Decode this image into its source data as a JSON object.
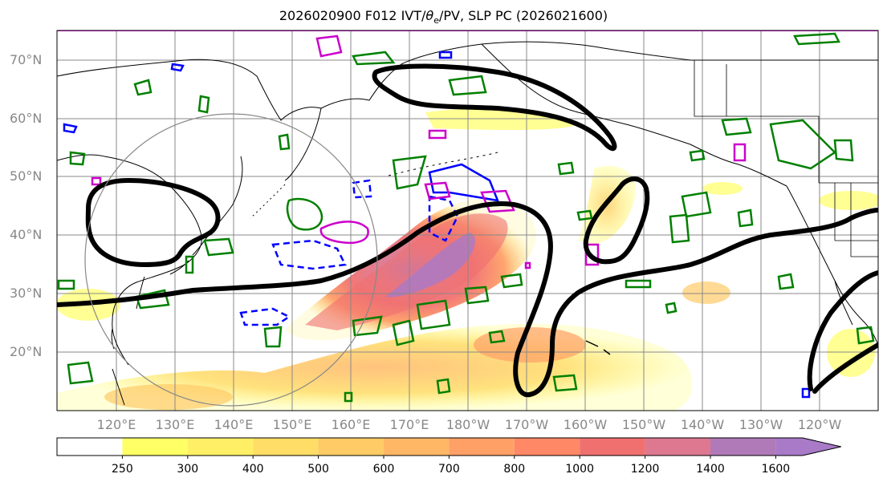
{
  "title_prefix": "2026020900 F012 IVT/",
  "title_theta": "θ",
  "title_sub": "e",
  "title_suffix": "/PV, SLP PC (2026021600)",
  "lat_labels": [
    "70°N",
    "60°N",
    "50°N",
    "40°N",
    "30°N",
    "20°N"
  ],
  "lon_labels": [
    "120°E",
    "130°E",
    "140°E",
    "150°E",
    "160°E",
    "170°E",
    "180°W",
    "170°W",
    "160°W",
    "150°W",
    "140°W",
    "130°W",
    "120°W"
  ],
  "colorbar": {
    "levels": [
      250,
      300,
      400,
      500,
      600,
      700,
      800,
      1000,
      1200,
      1400,
      1600
    ],
    "labels": [
      "250",
      "300",
      "400",
      "500",
      "600",
      "700",
      "800",
      "1000",
      "1200",
      "1400",
      "1600"
    ],
    "colors": [
      "#ffff66",
      "#ffef66",
      "#ffdd66",
      "#ffcb66",
      "#ffb766",
      "#ffa066",
      "#ff8866",
      "#f07070",
      "#dd7890",
      "#b07ab8",
      "#a87ac8"
    ]
  },
  "colors": {
    "slp_contour": "#000000",
    "pv_green": "#008000",
    "theta_blue": "#0000ff",
    "theta_magenta": "#cc00cc",
    "grid": "#888888",
    "circle": "#888888"
  }
}
